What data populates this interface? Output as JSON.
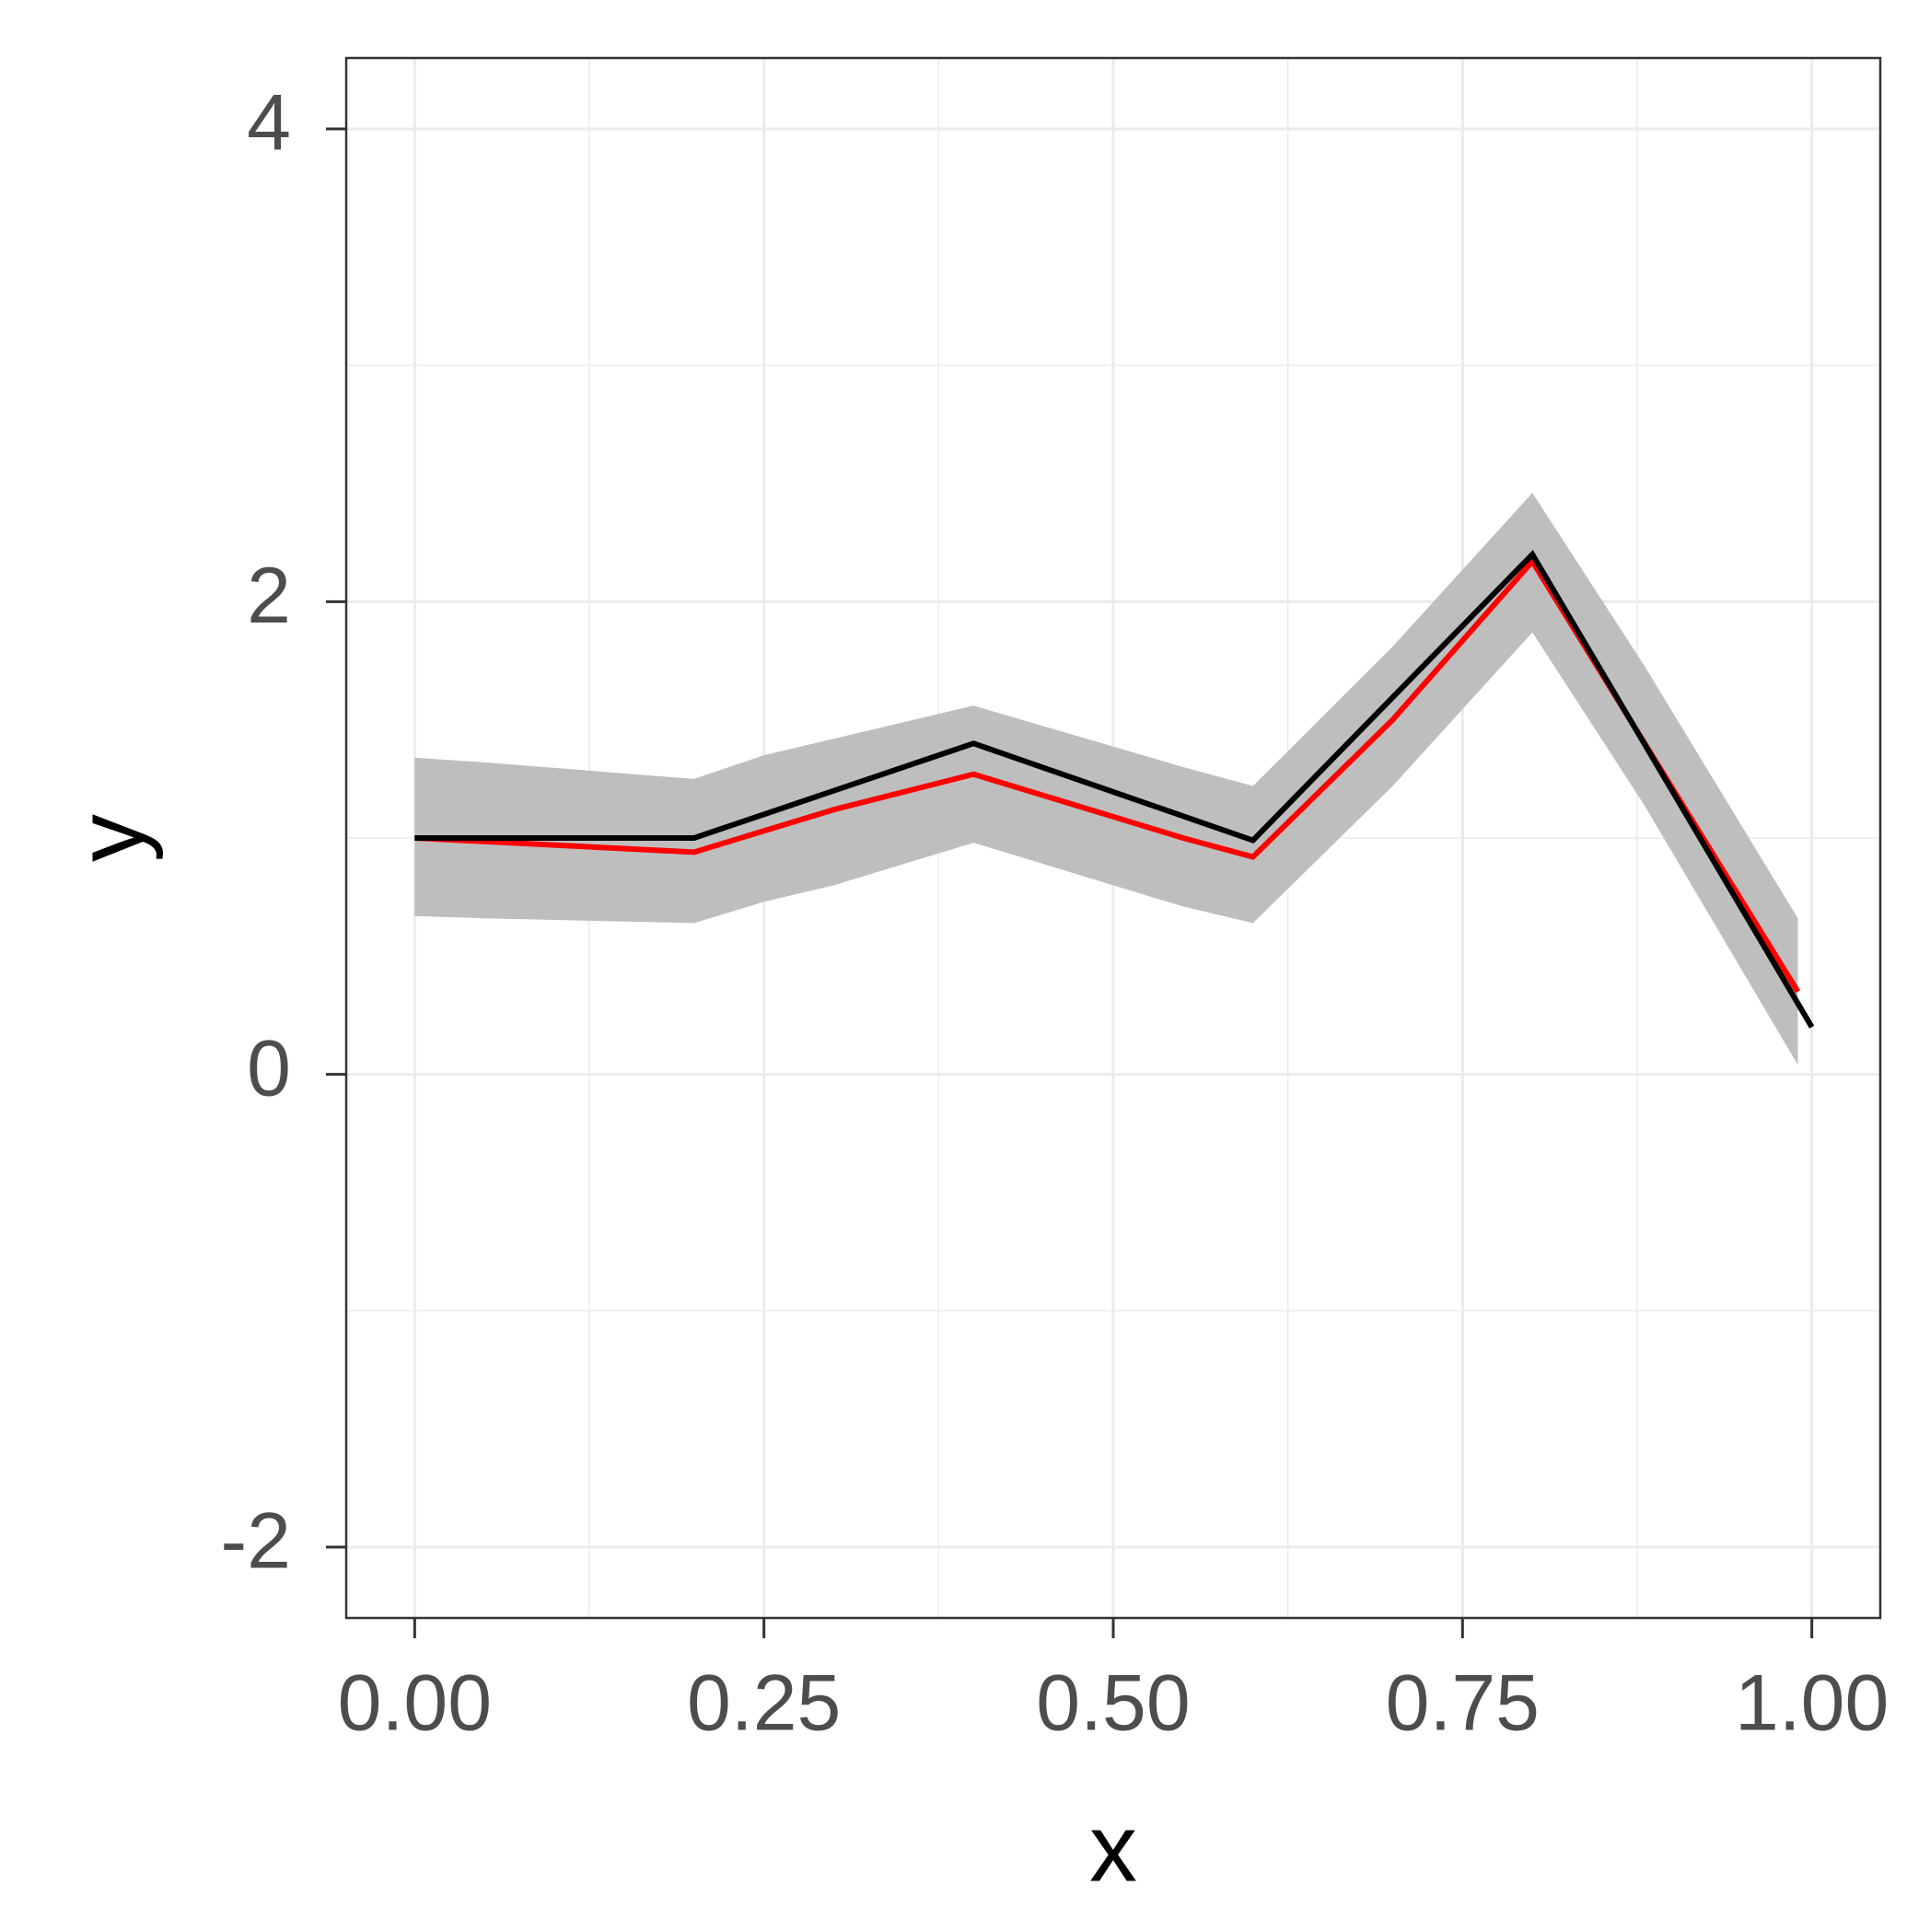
{
  "chart_data": {
    "type": "line",
    "x_label": "x",
    "y_label": "y",
    "xlim": [
      -0.049,
      1.049
    ],
    "ylim": [
      -2.3,
      4.3
    ],
    "xticks": [
      {
        "value": 0,
        "label": "0.00"
      },
      {
        "value": 0.25,
        "label": "0.25"
      },
      {
        "value": 0.5,
        "label": "0.50"
      },
      {
        "value": 0.75,
        "label": "0.75"
      },
      {
        "value": 1,
        "label": "1.00"
      }
    ],
    "yticks": [
      -2,
      0,
      2,
      4
    ],
    "minor_xticks": [
      0.125,
      0.375,
      0.625,
      0.875
    ],
    "minor_yticks": [
      -1,
      1,
      3
    ],
    "grid": true,
    "ribbon": {
      "color": "#bebebe",
      "x": [
        0,
        0.05,
        0.2,
        0.25,
        0.3,
        0.4,
        0.55,
        0.6,
        0.7,
        0.8,
        0.88,
        0.99
      ],
      "lower": [
        0.67,
        0.66,
        0.64,
        0.73,
        0.8,
        0.98,
        0.71,
        0.64,
        1.22,
        1.87,
        1.14,
        0.04
      ],
      "upper": [
        1.34,
        1.32,
        1.25,
        1.35,
        1.42,
        1.56,
        1.3,
        1.22,
        1.81,
        2.46,
        1.73,
        0.66
      ]
    },
    "series": [
      {
        "color": "#ff0000",
        "x": [
          0,
          0.2,
          0.3,
          0.4,
          0.55,
          0.6,
          0.7,
          0.8,
          0.99
        ],
        "values": [
          1.0,
          0.94,
          1.12,
          1.27,
          1.0,
          0.92,
          1.5,
          2.17,
          0.35
        ]
      },
      {
        "color": "#000000",
        "x": [
          0,
          0.2,
          0.4,
          0.6,
          0.8,
          1.0
        ],
        "values": [
          1.0,
          1.0,
          1.4,
          0.99,
          2.2,
          0.2
        ]
      }
    ]
  }
}
